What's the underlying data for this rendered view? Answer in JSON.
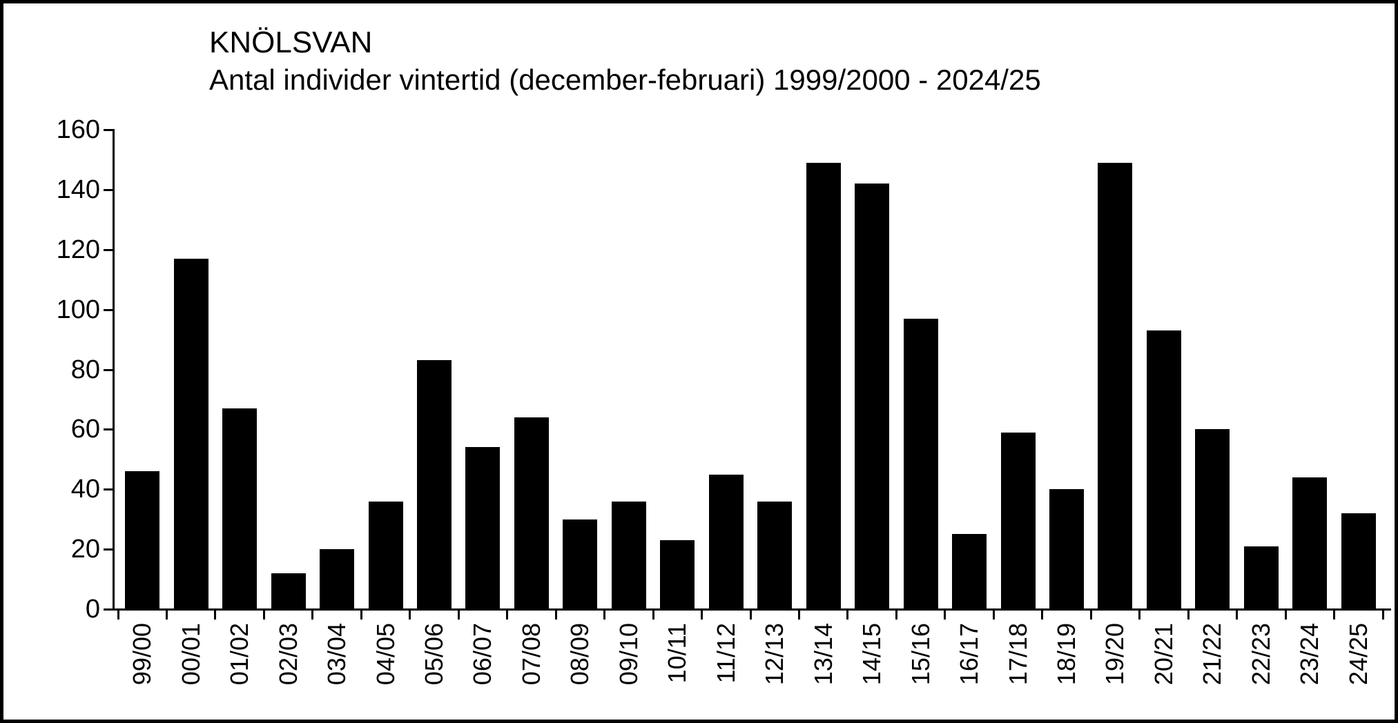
{
  "header": {
    "title": "KNÖLSVAN",
    "subtitle": "Antal individer vintertid (december-februari) 1999/2000 - 2024/25"
  },
  "chart_data": {
    "type": "bar",
    "title": "KNÖLSVAN",
    "subtitle": "Antal individer vintertid (december-februari) 1999/2000 - 2024/25",
    "categories": [
      "99/00",
      "00/01",
      "01/02",
      "02/03",
      "03/04",
      "04/05",
      "05/06",
      "06/07",
      "07/08",
      "08/09",
      "09/10",
      "10/11",
      "11/12",
      "12/13",
      "13/14",
      "14/15",
      "15/16",
      "16/17",
      "17/18",
      "18/19",
      "19/20",
      "20/21",
      "21/22",
      "22/23",
      "23/24",
      "24/25"
    ],
    "values": [
      46,
      117,
      67,
      12,
      20,
      36,
      83,
      54,
      64,
      30,
      36,
      23,
      45,
      36,
      149,
      142,
      97,
      25,
      59,
      40,
      149,
      93,
      60,
      21,
      44,
      32
    ],
    "xlabel": "",
    "ylabel": "",
    "ylim": [
      0,
      160
    ],
    "yticks": [
      0,
      20,
      40,
      60,
      80,
      100,
      120,
      140,
      160
    ],
    "grid": false,
    "legend": false,
    "bar_color": "#000000",
    "background_color": "#ffffff",
    "text_color": "#000000"
  }
}
